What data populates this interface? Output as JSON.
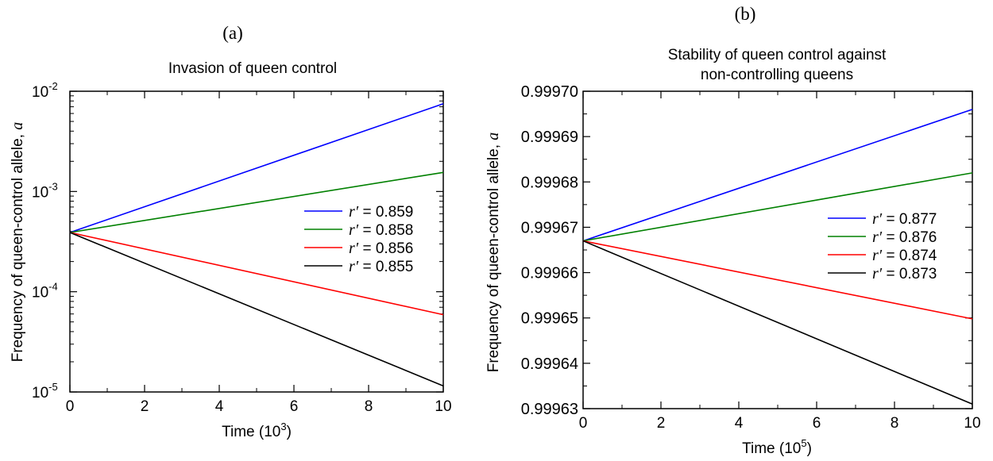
{
  "chart_data": [
    {
      "panel_label": "(a)",
      "type": "line",
      "title": "Invasion of queen control",
      "xlabel": "Time (10",
      "xlabel_exp": "3",
      "xlabel_close": ")",
      "ylabel": "Frequency of queen-control allele, ",
      "ylabel_var": "a",
      "xlim": [
        0,
        10
      ],
      "ylim": [
        1e-05,
        0.01
      ],
      "yscale": "log",
      "x_ticks": [
        "0",
        "2",
        "4",
        "6",
        "8",
        "10"
      ],
      "y_ticks": [
        {
          "base": "10",
          "exp": "-5",
          "value": 1e-05
        },
        {
          "base": "10",
          "exp": "-4",
          "value": 0.0001
        },
        {
          "base": "10",
          "exp": "-3",
          "value": 0.001
        },
        {
          "base": "10",
          "exp": "-2",
          "value": 0.01
        }
      ],
      "legend_position": "right",
      "series": [
        {
          "name": "r′ = 0.859",
          "color": "#0000ff",
          "x": [
            0,
            10
          ],
          "y": [
            0.00039,
            0.0075
          ]
        },
        {
          "name": "r′ = 0.858",
          "color": "#008000",
          "x": [
            0,
            10
          ],
          "y": [
            0.00039,
            0.00155
          ]
        },
        {
          "name": "r′ = 0.856",
          "color": "#ff0000",
          "x": [
            0,
            10
          ],
          "y": [
            0.00039,
            5.9e-05
          ]
        },
        {
          "name": "r′ = 0.855",
          "color": "#000000",
          "x": [
            0,
            10
          ],
          "y": [
            0.00039,
            1.15e-05
          ]
        }
      ]
    },
    {
      "panel_label": "(b)",
      "type": "line",
      "title": [
        "Stability of queen control against",
        "non-controlling queens"
      ],
      "xlabel": "Time (10",
      "xlabel_exp": "5",
      "xlabel_close": ")",
      "ylabel": "Frequency of queen-control allele, ",
      "ylabel_var": "a",
      "xlim": [
        0,
        10
      ],
      "ylim": [
        0.99963,
        0.9997
      ],
      "yscale": "linear",
      "x_ticks": [
        "0",
        "2",
        "4",
        "6",
        "8",
        "10"
      ],
      "y_ticks": [
        {
          "label": "0.99963",
          "value": 0.99963
        },
        {
          "label": "0.99964",
          "value": 0.99964
        },
        {
          "label": "0.99965",
          "value": 0.99965
        },
        {
          "label": "0.99966",
          "value": 0.99966
        },
        {
          "label": "0.99967",
          "value": 0.99967
        },
        {
          "label": "0.99968",
          "value": 0.99968
        },
        {
          "label": "0.99969",
          "value": 0.99969
        },
        {
          "label": "0.99970",
          "value": 0.9997
        }
      ],
      "legend_position": "right",
      "series": [
        {
          "name": "r′ = 0.877",
          "color": "#0000ff",
          "x": [
            0,
            10
          ],
          "y": [
            0.999667,
            0.999696
          ]
        },
        {
          "name": "r′ = 0.876",
          "color": "#008000",
          "x": [
            0,
            10
          ],
          "y": [
            0.999667,
            0.999682
          ]
        },
        {
          "name": "r′ = 0.874",
          "color": "#ff0000",
          "x": [
            0,
            10
          ],
          "y": [
            0.999667,
            0.9996498
          ]
        },
        {
          "name": "r′ = 0.873",
          "color": "#000000",
          "x": [
            0,
            10
          ],
          "y": [
            0.999667,
            0.999631
          ]
        }
      ]
    }
  ]
}
